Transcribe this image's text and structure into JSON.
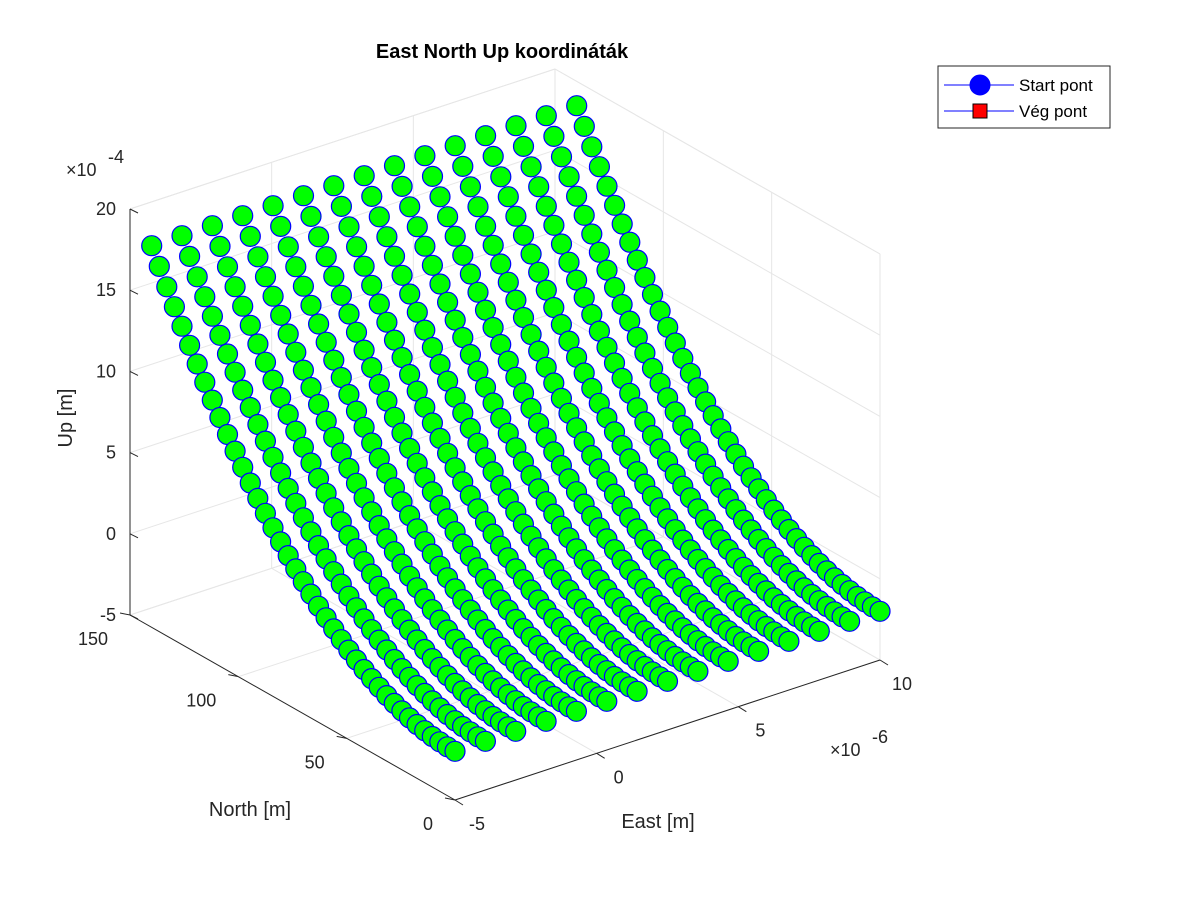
{
  "chart_data": {
    "type": "scatter",
    "title": "East North Up koordináták",
    "xlabel": "East [m]",
    "ylabel": "North [m]",
    "zlabel": "Up [m]",
    "x_multiplier": "×10",
    "x_exponent": "-6",
    "z_multiplier": "×10",
    "z_exponent": "-4",
    "xlim": [
      -5,
      10
    ],
    "ylim": [
      0,
      150
    ],
    "zlim": [
      -5,
      20
    ],
    "x_ticks": [
      "-5",
      "0",
      "5",
      "10"
    ],
    "y_ticks": [
      "0",
      "50",
      "100",
      "150"
    ],
    "z_ticks": [
      "-5",
      "0",
      "5",
      "10",
      "15",
      "20"
    ],
    "grid": true,
    "legend_position": "top-right",
    "legend": [
      {
        "label": "Start pont",
        "marker": "circle",
        "color": "#0000ff"
      },
      {
        "label": "Vég pont",
        "marker": "square",
        "color": "#ff0000"
      }
    ],
    "series": [
      {
        "name": "Start pont",
        "marker_fill": "#00ff00",
        "marker_edge": "#0000ff",
        "line_color": "#0000ff",
        "surface": {
          "x_range": [
            -5,
            10
          ],
          "y_range": [
            0,
            140
          ],
          "z_at_y0": -2.0,
          "z_at_ymax": 18.5,
          "curvature": "quadratic"
        }
      }
    ]
  }
}
